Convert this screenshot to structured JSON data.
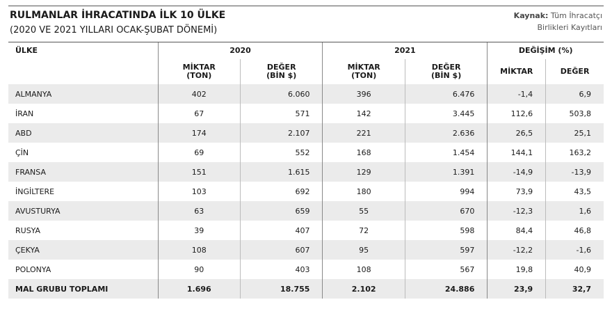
{
  "header": {
    "title": "RULMANLAR İHRACATINDA İLK 10 ÜLKE",
    "subtitle": "(2020 VE 2021 YILLARI OCAK-ŞUBAT DÖNEMİ)",
    "source_label": "Kaynak:",
    "source": "Tüm İhracatçı\nBirlikleri Kayıtları"
  },
  "table": {
    "country_header": "ÜLKE",
    "groups": [
      "2020",
      "2021",
      "DEĞİŞİM (%)"
    ],
    "subheaders": [
      "MİKTAR\n(TON)",
      "DEĞER\n(BİN $)",
      "MİKTAR\n(TON)",
      "DEĞER\n(BİN $)",
      "MİKTAR",
      "DEĞER"
    ],
    "rows": [
      [
        "ALMANYA",
        "402",
        "6.060",
        "396",
        "6.476",
        "-1,4",
        "6,9"
      ],
      [
        "İRAN",
        "67",
        "571",
        "142",
        "3.445",
        "112,6",
        "503,8"
      ],
      [
        "ABD",
        "174",
        "2.107",
        "221",
        "2.636",
        "26,5",
        "25,1"
      ],
      [
        "ÇİN",
        "69",
        "552",
        "168",
        "1.454",
        "144,1",
        "163,2"
      ],
      [
        "FRANSA",
        "151",
        "1.615",
        "129",
        "1.391",
        "-14,9",
        "-13,9"
      ],
      [
        "İNGİLTERE",
        "103",
        "692",
        "180",
        "994",
        "73,9",
        "43,5"
      ],
      [
        "AVUSTURYA",
        "63",
        "659",
        "55",
        "670",
        "-12,3",
        "1,6"
      ],
      [
        "RUSYA",
        "39",
        "407",
        "72",
        "598",
        "84,4",
        "46,8"
      ],
      [
        "ÇEKYA",
        "108",
        "607",
        "95",
        "597",
        "-12,2",
        "-1,6"
      ],
      [
        "POLONYA",
        "90",
        "403",
        "108",
        "567",
        "19,8",
        "40,9"
      ]
    ],
    "total": [
      "MAL GRUBU TOPLAMI",
      "1.696",
      "18.755",
      "2.102",
      "24.886",
      "23,9",
      "32,7"
    ]
  }
}
